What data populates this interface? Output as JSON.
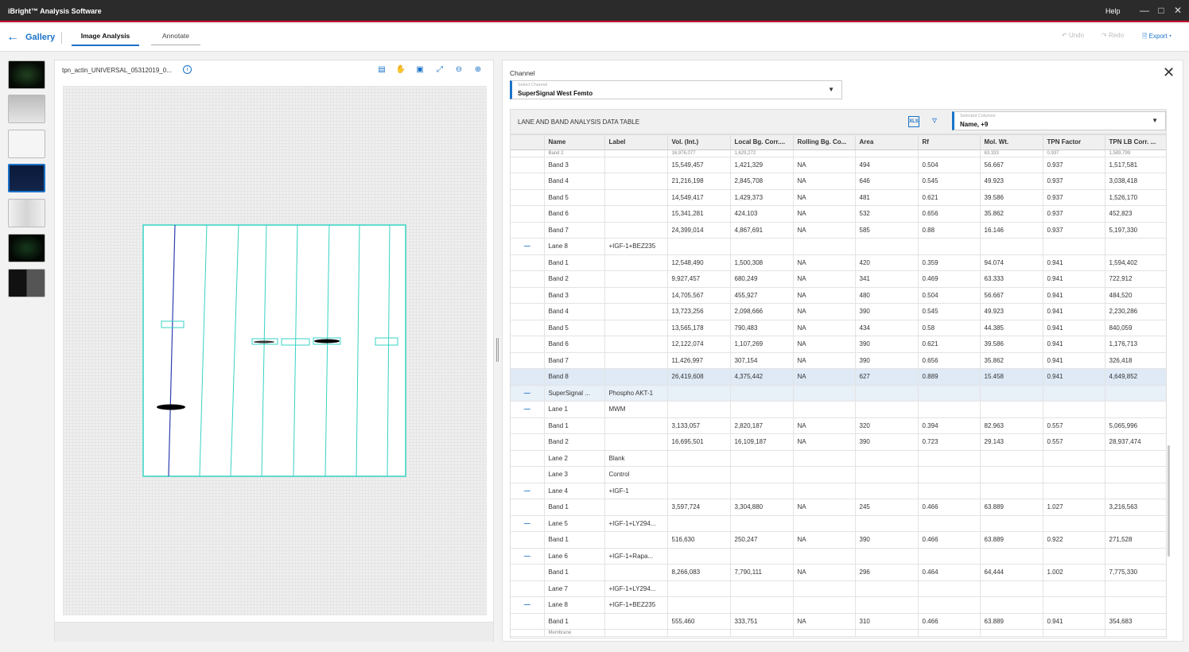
{
  "window": {
    "title": "iBright™ Analysis Software",
    "help": "Help"
  },
  "toolbar": {
    "gallery": "Gallery",
    "tabs": [
      "Image Analysis",
      "Annotate"
    ],
    "undo": "Undo",
    "redo": "Redo",
    "export": "Export"
  },
  "image_panel": {
    "filename": "tpn_actin_UNIVERSAL_05312019_0..."
  },
  "channel": {
    "title": "Channel",
    "select_label": "Select Channel",
    "select_value": "SuperSignal West Femto"
  },
  "table": {
    "title": "LANE AND BAND ANALYSIS DATA TABLE",
    "columns_label": "Selected Columns",
    "columns_value": "Name, +9",
    "headers": [
      "",
      "Name",
      "Label",
      "Vol. (Int.)",
      "Local Bg. Corr....",
      "Rolling Bg. Co...",
      "Area",
      "Rf",
      "Mol. Wt.",
      "TPN Factor",
      "TPN LB Corr. ..."
    ],
    "partial_top": [
      "",
      "Band 2",
      "",
      "16,976,077",
      "1,629,272",
      "",
      "",
      "",
      "63.333",
      "0.937",
      "1,589,799"
    ],
    "rows": [
      [
        "",
        "Band 3",
        "",
        "15,549,457",
        "1,421,329",
        "NA",
        "494",
        "0.504",
        "56.667",
        "0.937",
        "1,517,581"
      ],
      [
        "",
        "Band 4",
        "",
        "21,216,198",
        "2,845,708",
        "NA",
        "646",
        "0.545",
        "49.923",
        "0.937",
        "3,038,418"
      ],
      [
        "",
        "Band 5",
        "",
        "14,549,417",
        "1,429,373",
        "NA",
        "481",
        "0.621",
        "39.586",
        "0.937",
        "1,526,170"
      ],
      [
        "",
        "Band 6",
        "",
        "15,341,281",
        "424,103",
        "NA",
        "532",
        "0.656",
        "35.862",
        "0.937",
        "452,823"
      ],
      [
        "",
        "Band 7",
        "",
        "24,399,014",
        "4,867,691",
        "NA",
        "585",
        "0.88",
        "16.146",
        "0.937",
        "5,197,330"
      ],
      [
        "—",
        "Lane 8",
        "+IGF-1+BEZ235",
        "",
        "",
        "",
        "",
        "",
        "",
        "",
        ""
      ],
      [
        "",
        "Band 1",
        "",
        "12,548,490",
        "1,500,308",
        "NA",
        "420",
        "0.359",
        "94.074",
        "0.941",
        "1,594,402"
      ],
      [
        "",
        "Band 2",
        "",
        "9,927,457",
        "680,249",
        "NA",
        "341",
        "0.469",
        "63.333",
        "0.941",
        "722,912"
      ],
      [
        "",
        "Band 3",
        "",
        "14,705,567",
        "455,927",
        "NA",
        "480",
        "0.504",
        "56.667",
        "0.941",
        "484,520"
      ],
      [
        "",
        "Band 4",
        "",
        "13,723,256",
        "2,098,666",
        "NA",
        "390",
        "0.545",
        "49.923",
        "0.941",
        "2,230,286"
      ],
      [
        "",
        "Band 5",
        "",
        "13,565,178",
        "790,483",
        "NA",
        "434",
        "0.58",
        "44.385",
        "0.941",
        "840,059"
      ],
      [
        "",
        "Band 6",
        "",
        "12,122,074",
        "1,107,269",
        "NA",
        "390",
        "0.621",
        "39.586",
        "0.941",
        "1,176,713"
      ],
      [
        "",
        "Band 7",
        "",
        "11,426,997",
        "307,154",
        "NA",
        "390",
        "0.656",
        "35.862",
        "0.941",
        "326,418"
      ],
      [
        "",
        "Band 8",
        "",
        "26,419,608",
        "4,375,442",
        "NA",
        "627",
        "0.889",
        "15.458",
        "0.941",
        "4,649,852"
      ],
      [
        "—",
        "SuperSignal ...",
        "Phospho AKT-1",
        "",
        "",
        "",
        "",
        "",
        "",
        "",
        ""
      ],
      [
        "—",
        "Lane 1",
        "MWM",
        "",
        "",
        "",
        "",
        "",
        "",
        "",
        ""
      ],
      [
        "",
        "Band 1",
        "",
        "3,133,057",
        "2,820,187",
        "NA",
        "320",
        "0.394",
        "82.963",
        "0.557",
        "5,065,996"
      ],
      [
        "",
        "Band 2",
        "",
        "16,695,501",
        "16,109,187",
        "NA",
        "390",
        "0.723",
        "29.143",
        "0.557",
        "28,937,474"
      ],
      [
        "",
        "Lane 2",
        "Blank",
        "",
        "",
        "",
        "",
        "",
        "",
        "",
        ""
      ],
      [
        "",
        "Lane 3",
        "Control",
        "",
        "",
        "",
        "",
        "",
        "",
        "",
        ""
      ],
      [
        "—",
        "Lane 4",
        "+IGF-1",
        "",
        "",
        "",
        "",
        "",
        "",
        "",
        ""
      ],
      [
        "",
        "Band 1",
        "",
        "3,597,724",
        "3,304,880",
        "NA",
        "245",
        "0.466",
        "63.889",
        "1.027",
        "3,216,563"
      ],
      [
        "—",
        "Lane 5",
        "+IGF-1+LY294...",
        "",
        "",
        "",
        "",
        "",
        "",
        "",
        ""
      ],
      [
        "",
        "Band 1",
        "",
        "516,630",
        "250,247",
        "NA",
        "390",
        "0.466",
        "63.889",
        "0.922",
        "271,528"
      ],
      [
        "—",
        "Lane 6",
        "+IGF-1+Rapa...",
        "",
        "",
        "",
        "",
        "",
        "",
        "",
        ""
      ],
      [
        "",
        "Band 1",
        "",
        "8,266,083",
        "7,790,111",
        "NA",
        "296",
        "0.464",
        "64,444",
        "1.002",
        "7,775,330"
      ],
      [
        "",
        "Lane 7",
        "+IGF-1+LY294...",
        "",
        "",
        "",
        "",
        "",
        "",
        "",
        ""
      ],
      [
        "—",
        "Lane 8",
        "+IGF-1+BEZ235",
        "",
        "",
        "",
        "",
        "",
        "",
        "",
        ""
      ],
      [
        "",
        "Band 1",
        "",
        "555,460",
        "333,751",
        "NA",
        "310",
        "0.466",
        "63.889",
        "0.941",
        "354,683"
      ]
    ],
    "partial_bottom": [
      "",
      "Membrane",
      "",
      "",
      "",
      "",
      "",
      "",
      "",
      "",
      ""
    ]
  },
  "colors": {
    "accent": "#1a73c8",
    "lane_box": "#37d3c4",
    "highlight_row": "#dfeaf6"
  }
}
